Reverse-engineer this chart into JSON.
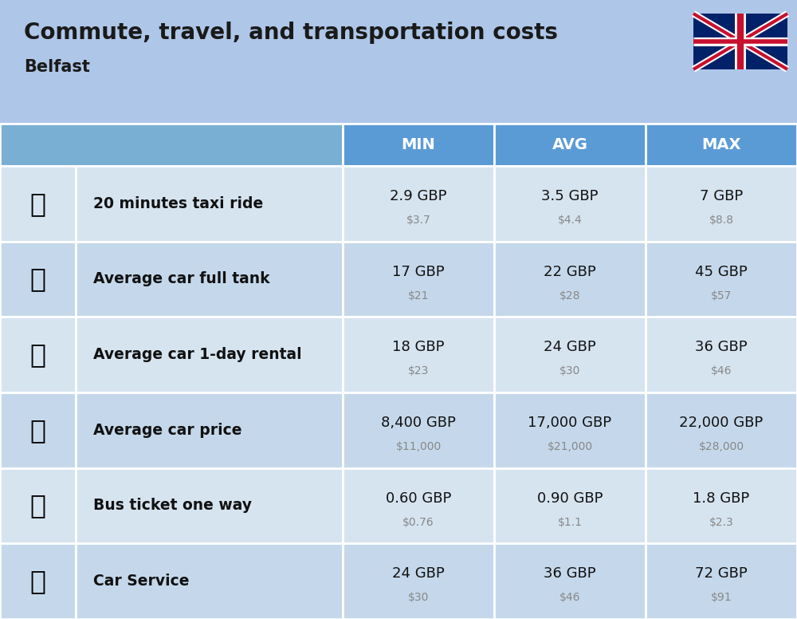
{
  "title": "Commute, travel, and transportation costs",
  "subtitle": "Belfast",
  "background_color": "#aec6e8",
  "header_color": "#5b9bd5",
  "header_text_color": "#ffffff",
  "row_colors": [
    "#d6e4f0",
    "#c5d8eb"
  ],
  "col_header_labels": [
    "MIN",
    "AVG",
    "MAX"
  ],
  "rows": [
    {
      "label": "20 minutes taxi ride",
      "min_gbp": "2.9 GBP",
      "min_usd": "$3.7",
      "avg_gbp": "3.5 GBP",
      "avg_usd": "$4.4",
      "max_gbp": "7 GBP",
      "max_usd": "$8.8"
    },
    {
      "label": "Average car full tank",
      "min_gbp": "17 GBP",
      "min_usd": "$21",
      "avg_gbp": "22 GBP",
      "avg_usd": "$28",
      "max_gbp": "45 GBP",
      "max_usd": "$57"
    },
    {
      "label": "Average car 1-day rental",
      "min_gbp": "18 GBP",
      "min_usd": "$23",
      "avg_gbp": "24 GBP",
      "avg_usd": "$30",
      "max_gbp": "36 GBP",
      "max_usd": "$46"
    },
    {
      "label": "Average car price",
      "min_gbp": "8,400 GBP",
      "min_usd": "$11,000",
      "avg_gbp": "17,000 GBP",
      "avg_usd": "$21,000",
      "max_gbp": "22,000 GBP",
      "max_usd": "$28,000"
    },
    {
      "label": "Bus ticket one way",
      "min_gbp": "0.60 GBP",
      "min_usd": "$0.76",
      "avg_gbp": "0.90 GBP",
      "avg_usd": "$1.1",
      "max_gbp": "1.8 GBP",
      "max_usd": "$2.3"
    },
    {
      "label": "Car Service",
      "min_gbp": "24 GBP",
      "min_usd": "$30",
      "avg_gbp": "36 GBP",
      "avg_usd": "$46",
      "max_gbp": "72 GBP",
      "max_usd": "$91"
    }
  ],
  "row_icons": [
    "🚕",
    "⛽",
    "🚙",
    "🚗",
    "🚌",
    "🔧"
  ],
  "flag_blue": "#012169",
  "flag_red": "#C8102E",
  "flag_white": "#FFFFFF"
}
